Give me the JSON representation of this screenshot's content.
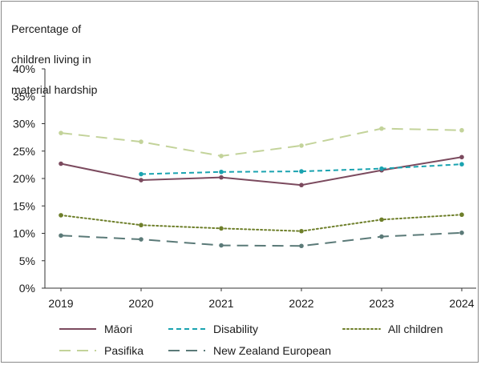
{
  "chart_data": {
    "type": "line",
    "ylabel": "Percentage of children living in material hardship",
    "ylabel_lines": [
      "Percentage of",
      "children living in",
      "material hardship"
    ],
    "x": [
      "2019",
      "2020",
      "2021",
      "2022",
      "2023",
      "2024"
    ],
    "ylim": [
      0,
      40
    ],
    "yticks": [
      0,
      5,
      10,
      15,
      20,
      25,
      30,
      35,
      40
    ],
    "ytick_labels": [
      "0%",
      "5%",
      "10%",
      "15%",
      "20%",
      "25%",
      "30%",
      "35%",
      "40%"
    ],
    "grid": false,
    "legend_position": "bottom",
    "series": [
      {
        "name": "Māori",
        "color": "#7b4a5e",
        "dash": "solid",
        "values": [
          22.7,
          19.7,
          20.2,
          18.8,
          21.5,
          23.9
        ]
      },
      {
        "name": "Disability",
        "color": "#1aa3b0",
        "dash": "dashed",
        "values": [
          null,
          20.8,
          21.2,
          21.3,
          21.8,
          22.6
        ]
      },
      {
        "name": "All children",
        "color": "#6e7f2a",
        "dash": "dotted",
        "values": [
          13.3,
          11.5,
          10.9,
          10.4,
          12.5,
          13.4
        ]
      },
      {
        "name": "Pasifika",
        "color": "#c3d39a",
        "dash": "longdash",
        "values": [
          28.3,
          26.7,
          24.1,
          26.0,
          29.1,
          28.8
        ]
      },
      {
        "name": "New Zealand European",
        "color": "#5b7a78",
        "dash": "longdash",
        "values": [
          9.6,
          8.9,
          7.8,
          7.7,
          9.4,
          10.1
        ]
      }
    ]
  }
}
